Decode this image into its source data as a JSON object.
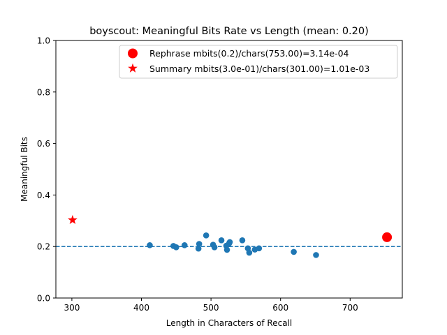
{
  "chart_data": {
    "type": "scatter",
    "title": "boyscout: Meaningful Bits Rate vs Length (mean: 0.20)",
    "xlabel": "Length in Characters of Recall",
    "ylabel": "Meaningful Bits",
    "xlim": [
      277,
      775
    ],
    "ylim": [
      0.0,
      1.0
    ],
    "xticks": [
      300,
      400,
      500,
      600,
      700
    ],
    "yticks": [
      0.0,
      0.2,
      0.4,
      0.6,
      0.8,
      1.0
    ],
    "xtick_labels": [
      "300",
      "400",
      "500",
      "600",
      "700"
    ],
    "ytick_labels": [
      "0.0",
      "0.2",
      "0.4",
      "0.6",
      "0.8",
      "1.0"
    ],
    "grid": false,
    "legend_position": "top-right",
    "mean_line": {
      "y": 0.2,
      "style": "dashed",
      "color": "#1f77b4"
    },
    "series": [
      {
        "color": "#1f77b4",
        "marker": "circle",
        "points": [
          [
            412,
            0.205
          ],
          [
            446,
            0.202
          ],
          [
            450,
            0.197
          ],
          [
            462,
            0.205
          ],
          [
            482,
            0.192
          ],
          [
            483,
            0.21
          ],
          [
            493,
            0.243
          ],
          [
            503,
            0.207
          ],
          [
            505,
            0.197
          ],
          [
            515,
            0.224
          ],
          [
            522,
            0.203
          ],
          [
            523,
            0.187
          ],
          [
            526,
            0.212
          ],
          [
            527,
            0.217
          ],
          [
            545,
            0.224
          ],
          [
            553,
            0.193
          ],
          [
            555,
            0.176
          ],
          [
            563,
            0.188
          ],
          [
            569,
            0.193
          ],
          [
            619,
            0.179
          ],
          [
            651,
            0.167
          ]
        ]
      },
      {
        "name": "Rephrase mbits(0.2)/chars(753.00)=3.14e-04",
        "color": "#ff0000",
        "marker": "big-circle",
        "points": [
          [
            753,
            0.236
          ]
        ]
      },
      {
        "name": "Summary mbits(3.0e-01)/chars(301.00)=1.01e-03",
        "color": "#ff0000",
        "marker": "star",
        "points": [
          [
            301,
            0.303
          ]
        ]
      }
    ]
  }
}
